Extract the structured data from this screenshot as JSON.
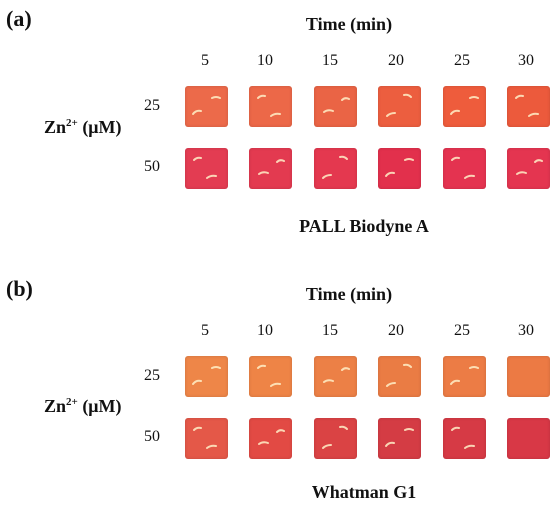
{
  "panels": [
    {
      "label": "(a)",
      "time_title": "Time (min)",
      "times": [
        "5",
        "10",
        "15",
        "20",
        "25",
        "30"
      ],
      "y_label_base": "Zn",
      "y_label_sup": "2+",
      "y_label_unit": " (μM)",
      "concentrations": [
        "25",
        "50"
      ],
      "material": "PALL Biodyne A",
      "colors": [
        [
          "#ec6a4a",
          "#ec6848",
          "#ea6445",
          "#ec5e3f",
          "#ee5c3c",
          "#ec5a3c"
        ],
        [
          "#e33c52",
          "#e33a50",
          "#e4384f",
          "#e2304c",
          "#e43350",
          "#e43550"
        ]
      ]
    },
    {
      "label": "(b)",
      "time_title": "Time (min)",
      "times": [
        "5",
        "10",
        "15",
        "20",
        "25",
        "30"
      ],
      "y_label_base": "Zn",
      "y_label_sup": "2+",
      "y_label_unit": " (μM)",
      "concentrations": [
        "25",
        "50"
      ],
      "material": "Whatman G1",
      "colors": [
        [
          "#ee8648",
          "#ee8446",
          "#ec8046",
          "#ea7c44",
          "#ec7c45",
          "#ec7a44"
        ],
        [
          "#e45848",
          "#e24a44",
          "#da4344",
          "#d43c44",
          "#d63a45",
          "#d83846"
        ]
      ]
    }
  ]
}
